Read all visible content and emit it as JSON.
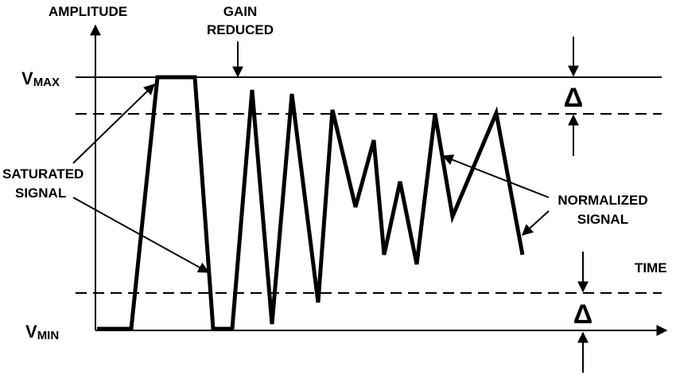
{
  "labels": {
    "amplitude": "AMPLITUDE",
    "gain_reduced_line1": "GAIN",
    "gain_reduced_line2": "REDUCED",
    "vmax_main": "V",
    "vmax_sub": "MAX",
    "vmin_main": "V",
    "vmin_sub": "MIN",
    "saturated_line1": "SATURATED",
    "saturated_line2": "SIGNAL",
    "normalized_line1": "NORMALIZED",
    "normalized_line2": "SIGNAL",
    "time": "TIME",
    "delta_top": "Δ",
    "delta_bottom": "Δ"
  },
  "colors": {
    "ink": "#000000",
    "background": "#ffffff"
  }
}
